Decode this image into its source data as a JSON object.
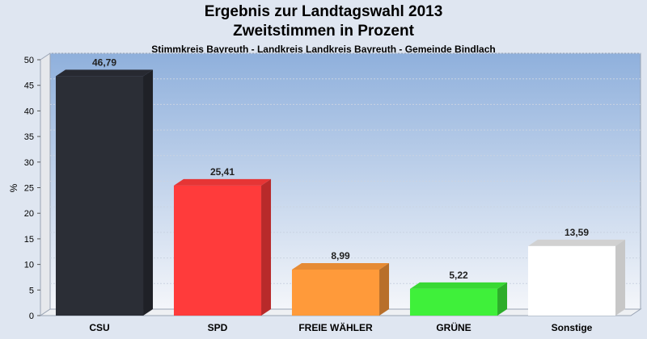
{
  "chart_data": {
    "type": "bar",
    "title": "Ergebnis zur Landtagswahl 2013",
    "subtitle_line": "Zweitstimmen in Prozent",
    "subtitle": "Stimmkreis Bayreuth - Landkreis Landkreis Bayreuth - Gemeinde Bindlach",
    "ylabel": "%",
    "xlabel": "",
    "ylim": [
      0,
      50
    ],
    "yticks": [
      "0",
      "5",
      "10",
      "15",
      "20",
      "25",
      "30",
      "35",
      "40",
      "45",
      "50"
    ],
    "categories": [
      "CSU",
      "SPD",
      "FREIE WÄHLER",
      "GRÜNE",
      "Sonstige"
    ],
    "values": [
      46.79,
      25.41,
      8.99,
      5.22,
      13.59
    ],
    "value_labels": [
      "46,79",
      "25,41",
      "8,99",
      "5,22",
      "13,59"
    ],
    "colors": [
      "#2b2e36",
      "#ff3b3b",
      "#ff9a3a",
      "#3ff03a",
      "#ffffff"
    ],
    "grid": true,
    "legend": "none"
  }
}
